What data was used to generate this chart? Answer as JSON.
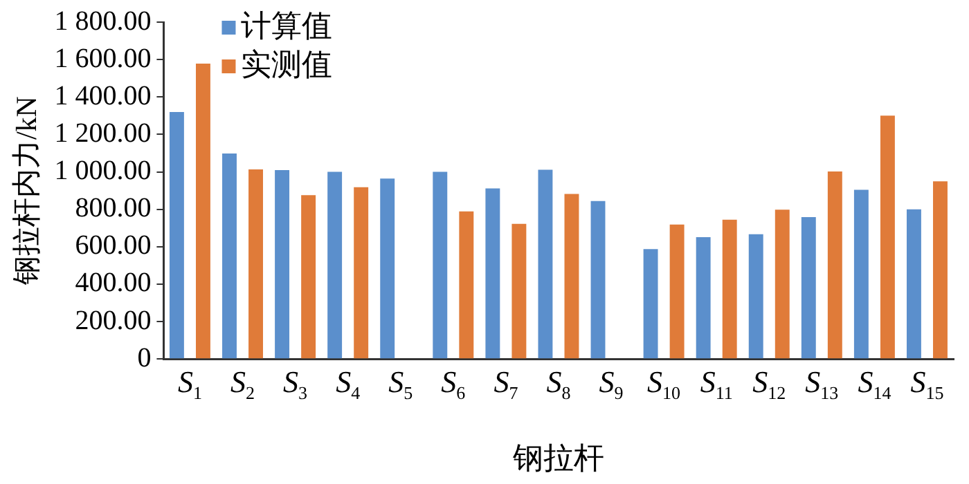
{
  "chart_data": {
    "type": "bar",
    "xlabel": "钢拉杆",
    "ylabel": "钢拉杆内力/kN",
    "categories": [
      "S$_{1}$",
      "S$_{2}$",
      "S$_{3}$",
      "S$_{4}$",
      "S$_{5}$",
      "S$_{6}$",
      "S$_{7}$",
      "S$_{8}$",
      "S$_{9}$",
      "S$_{10}$",
      "S$_{11}$",
      "S$_{12}$",
      "S$_{13}$",
      "S$_{14}$",
      "S$_{15}$"
    ],
    "series": [
      {
        "name": "计算值",
        "color": "#5b8fcc",
        "values": [
          1320,
          1098,
          1009,
          1000,
          964,
          1000,
          911,
          1011,
          844,
          587,
          651,
          667,
          758,
          904,
          800
        ]
      },
      {
        "name": "实测值",
        "color": "#e07b39",
        "values": [
          1578,
          1013,
          875,
          918,
          null,
          789,
          722,
          882,
          null,
          718,
          744,
          798,
          1002,
          1300,
          949
        ]
      }
    ],
    "ylim": [
      0,
      1800
    ],
    "yticks": [
      {
        "value": 0,
        "label": "0"
      },
      {
        "value": 200,
        "label": "200.00"
      },
      {
        "value": 400,
        "label": "400.00"
      },
      {
        "value": 600,
        "label": "600.00"
      },
      {
        "value": 800,
        "label": "800.00"
      },
      {
        "value": 1000,
        "label": "1 000.00"
      },
      {
        "value": 1200,
        "label": "1 200.00"
      },
      {
        "value": 1400,
        "label": "1 400.00"
      },
      {
        "value": 1600,
        "label": "1 600.00"
      },
      {
        "value": 1800,
        "label": "1 800.00"
      }
    ],
    "grid": false,
    "legend": "top left"
  }
}
